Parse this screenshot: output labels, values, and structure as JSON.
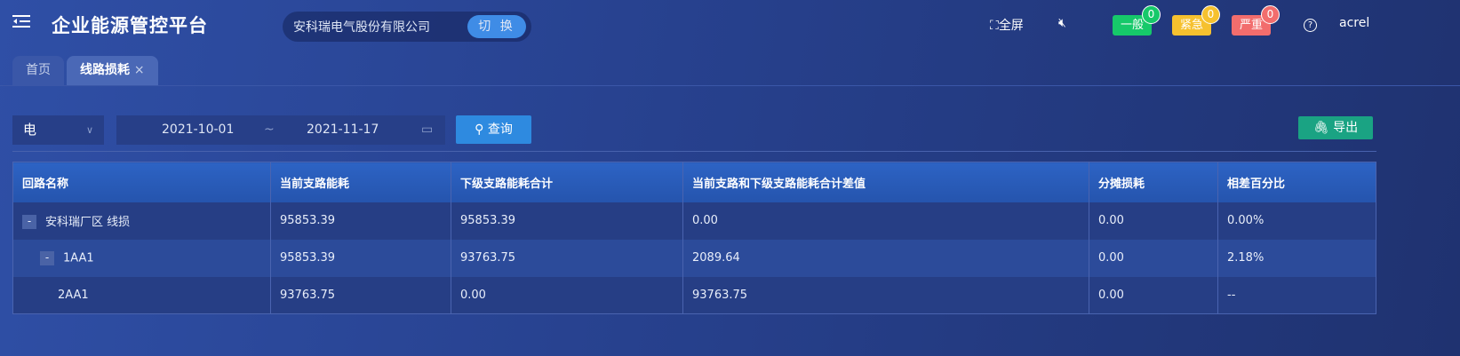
{
  "header": {
    "title": "企业能源管控平台",
    "company": "安科瑞电气股份有限公司",
    "switch_label": "切 换",
    "fullscreen_label": "全屏",
    "user": "acrel",
    "alarms": [
      {
        "label": "一般",
        "count": "0",
        "color": "#16c96a"
      },
      {
        "label": "紧急",
        "count": "0",
        "color": "#f6c12f"
      },
      {
        "label": "严重",
        "count": "0",
        "color": "#f26d6d"
      }
    ]
  },
  "tabs": [
    {
      "label": "首页"
    },
    {
      "label": "线路损耗",
      "close": "×"
    }
  ],
  "filters": {
    "energy_type": "电",
    "start_date": "2021-10-01",
    "separator": "~",
    "end_date": "2021-11-17",
    "query_label": "查询",
    "export_label": "导出"
  },
  "table": {
    "columns": [
      "回路名称",
      "当前支路能耗",
      "下级支路能耗合计",
      "当前支路和下级支路能耗合计差值",
      "分摊损耗",
      "相差百分比"
    ],
    "rows": [
      {
        "toggle": "-",
        "cells": [
          "安科瑞厂区 线损",
          "95853.39",
          "95853.39",
          "0.00",
          "0.00",
          "0.00%"
        ]
      },
      {
        "toggle": "-",
        "cells": [
          "1AA1",
          "95853.39",
          "93763.75",
          "2089.64",
          "0.00",
          "2.18%"
        ]
      },
      {
        "toggle": "",
        "cells": [
          "2AA1",
          "93763.75",
          "0.00",
          "93763.75",
          "0.00",
          "--"
        ]
      }
    ]
  }
}
